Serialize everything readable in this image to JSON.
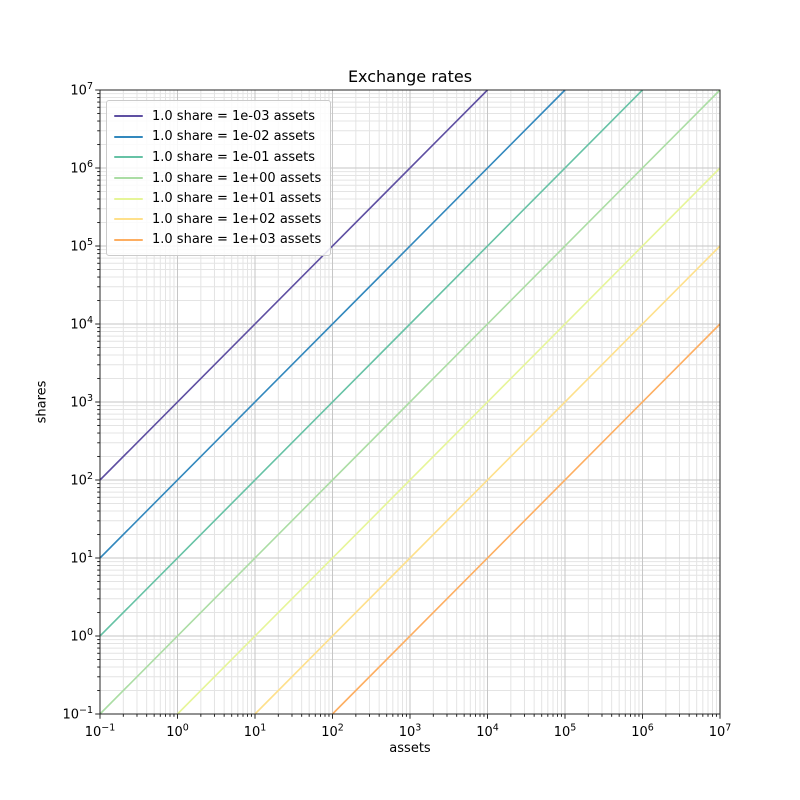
{
  "figure": {
    "background_color": "#ffffff",
    "spine_color": "#262626",
    "text_color": "#000000"
  },
  "chart_data": {
    "type": "line",
    "title": "Exchange rates",
    "xlabel": "assets",
    "ylabel": "shares",
    "x_scale": "log",
    "y_scale": "log",
    "xlim": [
      0.1,
      10000000
    ],
    "ylim": [
      0.1,
      10000000
    ],
    "xlim_exponents": [
      -1,
      7
    ],
    "ylim_exponents": [
      -1,
      7
    ],
    "x_tick_exponents": [
      -1,
      0,
      1,
      2,
      3,
      4,
      5,
      6,
      7
    ],
    "y_tick_exponents": [
      -1,
      0,
      1,
      2,
      3,
      4,
      5,
      6,
      7
    ],
    "grid": {
      "which": "both",
      "major_color": "#c6c6c6",
      "minor_color": "#e4e4e4"
    },
    "legend": {
      "position": "upper-left"
    },
    "line_relation": "shares = assets / assets_per_share (slope 1 on log-log axes)",
    "series": [
      {
        "label": "1.0 share = 1e-03 assets",
        "assets_per_share": 0.001,
        "color": "#5e4fa2"
      },
      {
        "label": "1.0 share = 1e-02 assets",
        "assets_per_share": 0.01,
        "color": "#3288bd"
      },
      {
        "label": "1.0 share = 1e-01 assets",
        "assets_per_share": 0.1,
        "color": "#66c2a5"
      },
      {
        "label": "1.0 share = 1e+00 assets",
        "assets_per_share": 1,
        "color": "#abdda4"
      },
      {
        "label": "1.0 share = 1e+01 assets",
        "assets_per_share": 10,
        "color": "#e6f598"
      },
      {
        "label": "1.0 share = 1e+02 assets",
        "assets_per_share": 100,
        "color": "#fee08b"
      },
      {
        "label": "1.0 share = 1e+03 assets",
        "assets_per_share": 1000,
        "color": "#fdae61"
      }
    ]
  }
}
